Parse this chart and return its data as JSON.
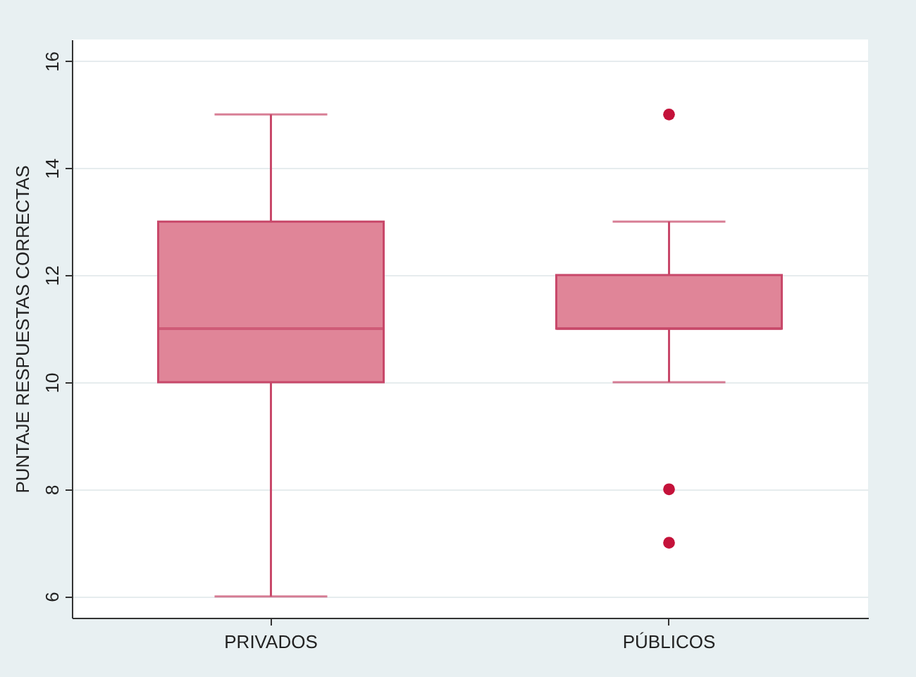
{
  "chart_data": {
    "type": "box",
    "ylabel": "PUNTAJE RESPUESTAS CORRECTAS",
    "categories": [
      "PRIVADOS",
      "PÚBLICOS"
    ],
    "series": [
      {
        "color": "#e08598",
        "boxes": [
          {
            "low": 6,
            "q1": 10,
            "median": 11,
            "q3": 13,
            "high": 15
          },
          {
            "low": 10,
            "q1": 11,
            "median": 11,
            "q3": 12,
            "high": 13,
            "outliers": [
              15,
              8,
              7
            ]
          }
        ]
      }
    ],
    "ylim": [
      5.6,
      16.4
    ],
    "yticks": [
      6,
      8,
      10,
      12,
      14,
      16
    ],
    "grid": "y"
  }
}
